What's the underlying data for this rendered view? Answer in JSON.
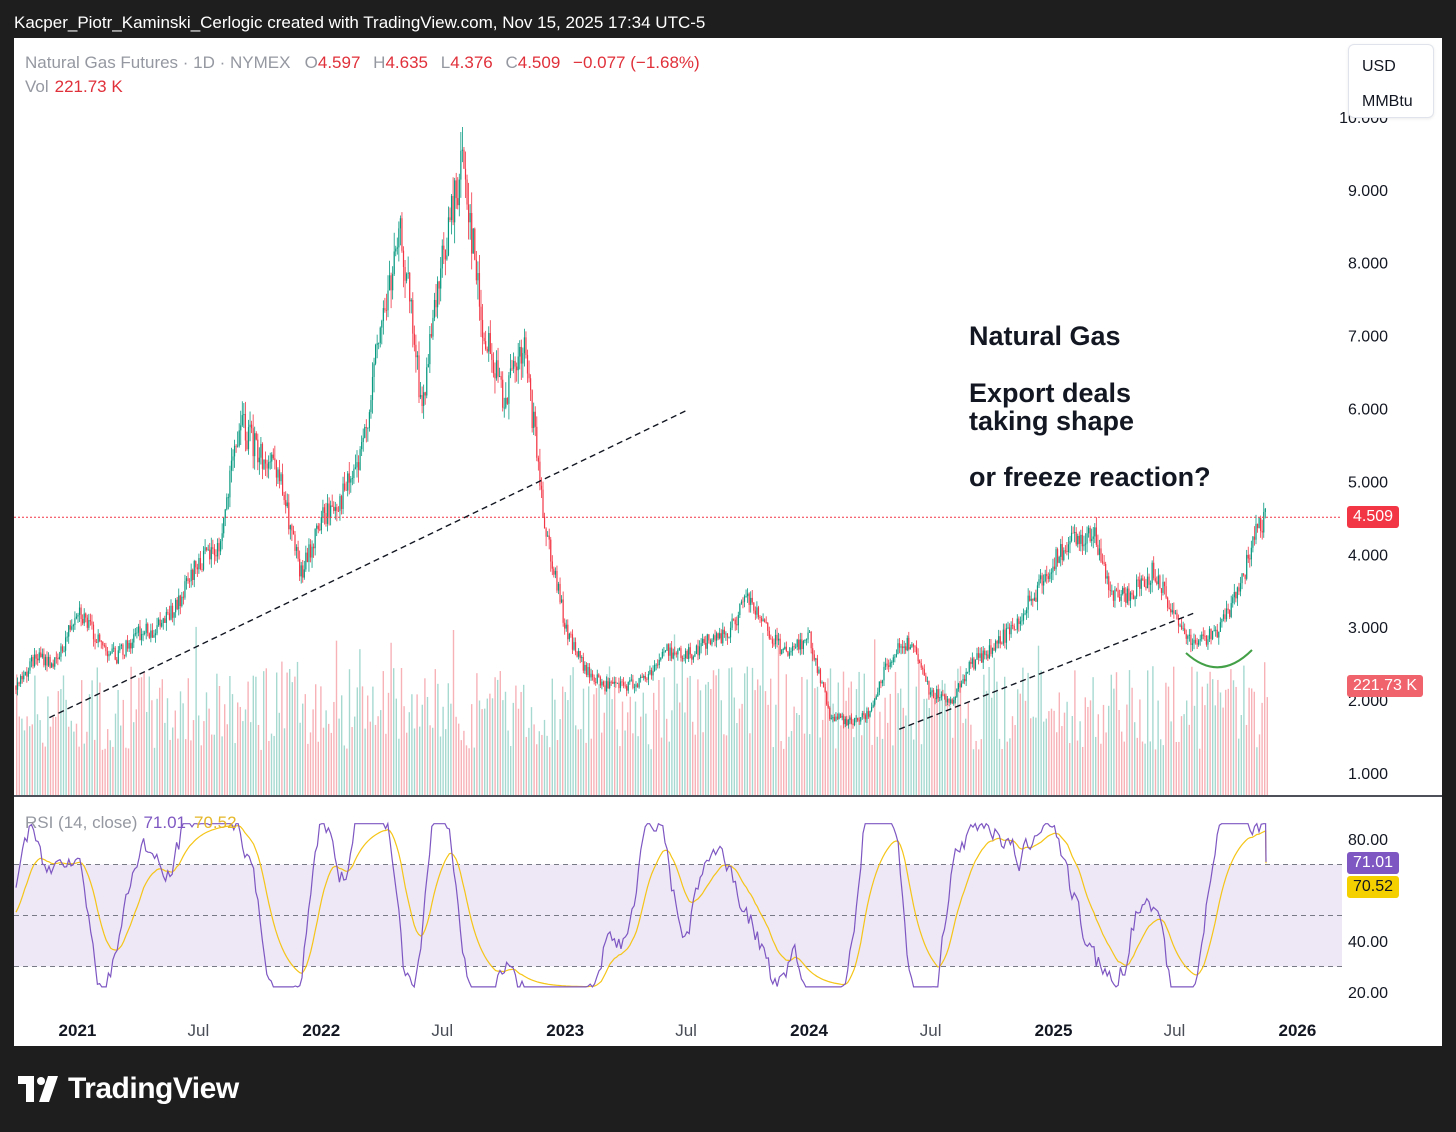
{
  "header": {
    "credit": "Kacper_Piotr_Kaminski_Cerlogic created with TradingView.com, Nov 15, 2025 17:34 UTC-5"
  },
  "legend": {
    "symbol": "Natural Gas Futures · 1D · NYMEX",
    "o_label": "O",
    "o_value": "4.597",
    "h_label": "H",
    "h_value": "4.635",
    "l_label": "L",
    "l_value": "4.376",
    "c_label": "C",
    "c_value": "4.509",
    "change": "−0.077 (−1.68%)",
    "vol_label": "Vol",
    "vol_value": "221.73 K",
    "rsi_label": "RSI (14, close)",
    "rsi_value": "71.01",
    "rsi_ma_value": "70.52"
  },
  "units": {
    "currency": "USD",
    "unit": "MMBtu"
  },
  "annotation": {
    "line1": "Natural Gas",
    "line2": "Export deals",
    "line3": "taking shape",
    "line4": "or freeze reaction?"
  },
  "price_tag": "4.509",
  "volume_tag": "221.73 K",
  "rsi_tag": "71.01",
  "rsi_ma_tag": "70.52",
  "footer": {
    "brand": "TradingView"
  },
  "colors": {
    "up": "#089981",
    "down": "#f23645",
    "rsi": "#7e57c2",
    "rsi_ma": "#f5c518",
    "band": "#ede7f6",
    "annotation_arc": "#43a047"
  },
  "chart_data": [
    {
      "type": "candlestick",
      "title": "Natural Gas Futures · 1D · NYMEX",
      "y_ticks": [
        "1.000",
        "2.000",
        "3.000",
        "4.000",
        "5.000",
        "6.000",
        "7.000",
        "8.000",
        "9.000",
        "10.000"
      ],
      "x_ticks": [
        "2021",
        "Jul",
        "2022",
        "Jul",
        "2023",
        "Jul",
        "2024",
        "Jul",
        "2025",
        "Jul",
        "2026"
      ],
      "x": [
        "2020-10-01",
        "2020-11-01",
        "2020-12-01",
        "2021-01-01",
        "2021-02-01",
        "2021-03-01",
        "2021-04-01",
        "2021-05-01",
        "2021-06-01",
        "2021-07-01",
        "2021-08-01",
        "2021-09-01",
        "2021-10-01",
        "2021-11-01",
        "2021-12-01",
        "2022-01-01",
        "2022-02-01",
        "2022-03-01",
        "2022-04-01",
        "2022-05-01",
        "2022-06-01",
        "2022-07-01",
        "2022-08-01",
        "2022-09-01",
        "2022-10-01",
        "2022-11-01",
        "2022-12-01",
        "2023-01-01",
        "2023-02-01",
        "2023-03-01",
        "2023-04-01",
        "2023-05-01",
        "2023-06-01",
        "2023-07-01",
        "2023-08-01",
        "2023-09-01",
        "2023-10-01",
        "2023-11-01",
        "2023-12-01",
        "2024-01-01",
        "2024-02-01",
        "2024-03-01",
        "2024-04-01",
        "2024-05-01",
        "2024-06-01",
        "2024-07-01",
        "2024-08-01",
        "2024-09-01",
        "2024-10-01",
        "2024-11-01",
        "2024-12-01",
        "2025-01-01",
        "2025-02-01",
        "2025-03-01",
        "2025-04-01",
        "2025-05-01",
        "2025-06-01",
        "2025-07-01",
        "2025-08-01",
        "2025-09-01",
        "2025-10-01",
        "2025-11-01",
        "2025-11-15"
      ],
      "close": [
        2.2,
        2.6,
        2.5,
        3.3,
        2.8,
        2.6,
        2.9,
        3.0,
        3.3,
        3.9,
        4.1,
        5.8,
        5.4,
        5.0,
        3.7,
        4.5,
        4.8,
        5.3,
        7.2,
        8.4,
        6.0,
        8.0,
        9.5,
        7.0,
        6.2,
        6.8,
        4.5,
        3.0,
        2.4,
        2.2,
        2.2,
        2.3,
        2.7,
        2.6,
        2.8,
        2.9,
        3.4,
        2.9,
        2.6,
        2.9,
        1.8,
        1.7,
        1.8,
        2.6,
        2.8,
        2.1,
        2.0,
        2.5,
        2.7,
        3.0,
        3.4,
        3.9,
        4.2,
        4.3,
        3.4,
        3.5,
        3.8,
        3.1,
        2.8,
        2.9,
        3.4,
        4.3,
        4.509
      ],
      "ylim": [
        0.7,
        10.3
      ]
    },
    {
      "type": "line",
      "title": "RSI (14, close)",
      "y_ticks": [
        "20.00",
        "40.00",
        "80.00"
      ],
      "bands": [
        30,
        70
      ],
      "midline": 50,
      "series": [
        {
          "name": "RSI",
          "last": 71.01
        },
        {
          "name": "RSI-based MA",
          "last": 70.52
        }
      ],
      "ylim": [
        17,
        90
      ]
    }
  ]
}
